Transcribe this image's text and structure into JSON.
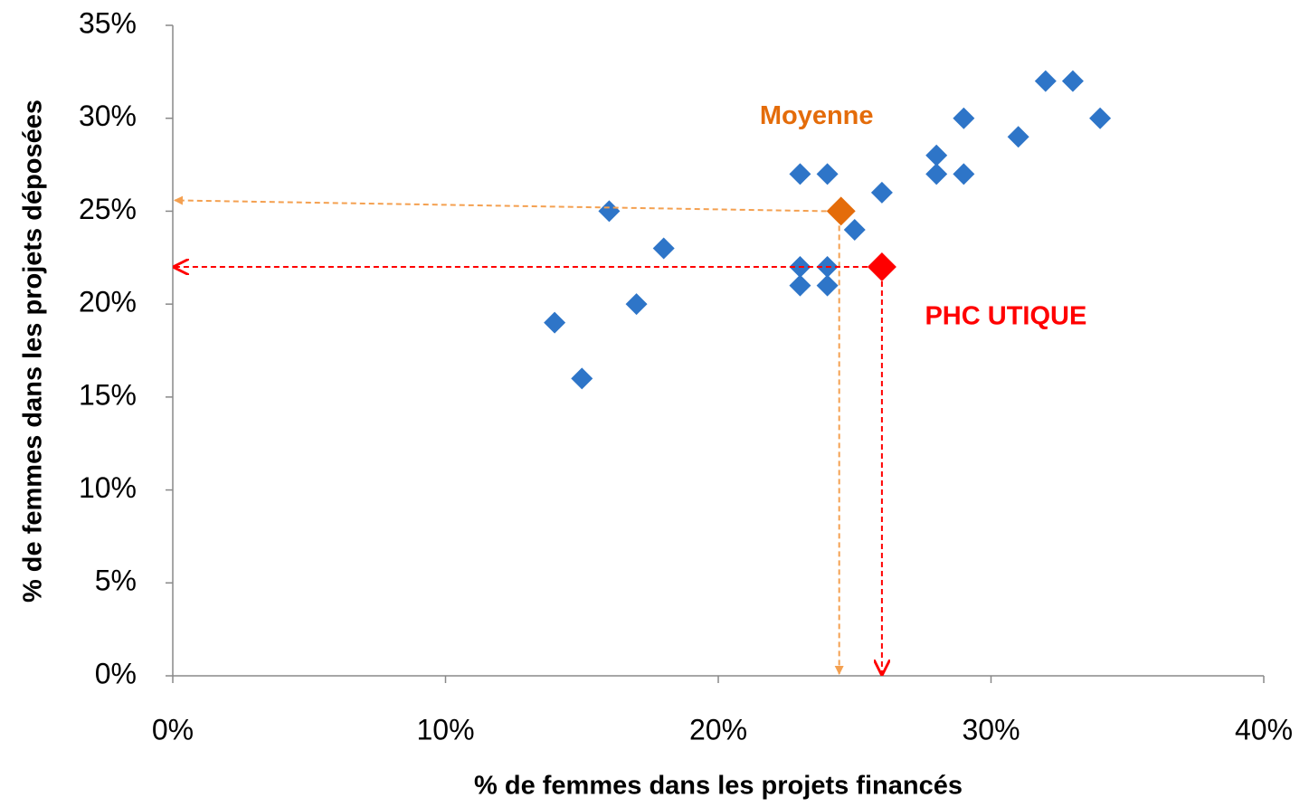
{
  "chart_data": {
    "type": "scatter",
    "xlabel": "% de femmes dans les projets financés",
    "ylabel": "% de femmes dans les projets déposées",
    "xlim": [
      0,
      40
    ],
    "xticks": [
      {
        "value": 0,
        "label": "0%"
      },
      {
        "value": 10,
        "label": "10%"
      },
      {
        "value": 20,
        "label": "20%"
      },
      {
        "value": 30,
        "label": "30%"
      },
      {
        "value": 40,
        "label": "40%"
      }
    ],
    "ylim": [
      0,
      35
    ],
    "yticks": [
      {
        "value": 0,
        "label": "0%"
      },
      {
        "value": 5,
        "label": "5%"
      },
      {
        "value": 10,
        "label": "10%"
      },
      {
        "value": 15,
        "label": "15%"
      },
      {
        "value": 20,
        "label": "20%"
      },
      {
        "value": 25,
        "label": "25%"
      },
      {
        "value": 30,
        "label": "30%"
      },
      {
        "value": 35,
        "label": "35%"
      }
    ],
    "series": [
      {
        "color": "#2e75c8",
        "x": [
          14,
          15,
          16,
          18,
          17,
          23,
          24,
          23,
          23,
          24,
          24,
          25,
          26,
          28,
          28,
          29,
          29,
          31,
          32,
          33,
          34
        ],
        "y": [
          19,
          16,
          25,
          23,
          20,
          27,
          27,
          22,
          21,
          22,
          21,
          24,
          26,
          28,
          27,
          27,
          30,
          29,
          32,
          32,
          30
        ]
      },
      {
        "name": "Moyenne",
        "color": "#e46c0a",
        "x": [
          24.5
        ],
        "y": [
          25
        ]
      },
      {
        "name": "PHC UTIQUE",
        "color": "#ff0000",
        "x": [
          26
        ],
        "y": [
          22
        ]
      }
    ]
  }
}
